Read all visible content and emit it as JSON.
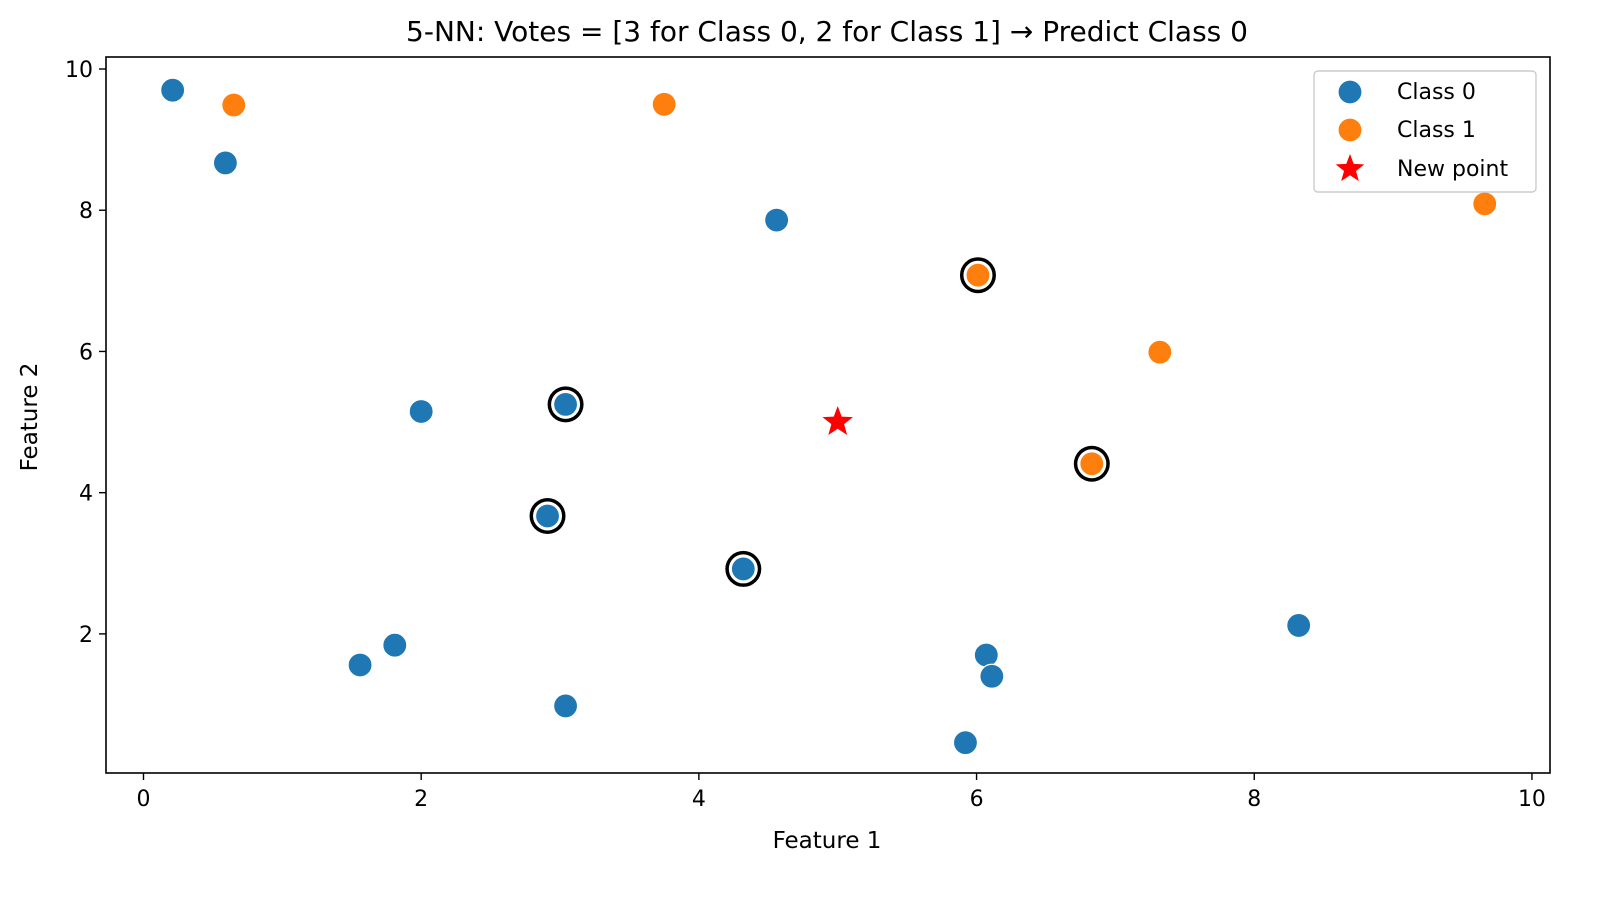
{
  "chart_data": {
    "type": "scatter",
    "title": "5-NN: Votes = [3 for Class 0, 2 for Class 1] → Predict Class 0",
    "xlabel": "Feature 1",
    "ylabel": "Feature 2",
    "xlim": [
      -0.27,
      10.13
    ],
    "ylim": [
      0.03,
      10.17
    ],
    "xticks": [
      0,
      2,
      4,
      6,
      8,
      10
    ],
    "yticks": [
      2,
      4,
      6,
      8,
      10
    ],
    "grid": false,
    "legend_position": "top-right",
    "series": [
      {
        "name": "Class 0",
        "color": "#1f77b4",
        "points": [
          {
            "x": 0.21,
            "y": 9.7
          },
          {
            "x": 0.59,
            "y": 8.67
          },
          {
            "x": 4.56,
            "y": 7.86
          },
          {
            "x": 2.0,
            "y": 5.15
          },
          {
            "x": 3.04,
            "y": 5.25
          },
          {
            "x": 2.91,
            "y": 3.67
          },
          {
            "x": 4.32,
            "y": 2.92
          },
          {
            "x": 1.81,
            "y": 1.84
          },
          {
            "x": 1.56,
            "y": 1.56
          },
          {
            "x": 3.04,
            "y": 0.98
          },
          {
            "x": 6.07,
            "y": 1.7
          },
          {
            "x": 6.11,
            "y": 1.4
          },
          {
            "x": 5.92,
            "y": 0.46
          },
          {
            "x": 8.32,
            "y": 2.12
          }
        ]
      },
      {
        "name": "Class 1",
        "color": "#ff7f0e",
        "points": [
          {
            "x": 0.65,
            "y": 9.49
          },
          {
            "x": 3.75,
            "y": 9.5
          },
          {
            "x": 6.01,
            "y": 7.08
          },
          {
            "x": 7.32,
            "y": 5.99
          },
          {
            "x": 6.83,
            "y": 4.41
          },
          {
            "x": 9.66,
            "y": 8.09
          }
        ]
      }
    ],
    "new_point": {
      "name": "New point",
      "x": 5.0,
      "y": 5.0,
      "color": "#ff0000",
      "marker": "star"
    },
    "neighbors": [
      {
        "x": 3.04,
        "y": 5.25
      },
      {
        "x": 2.91,
        "y": 3.67
      },
      {
        "x": 4.32,
        "y": 2.92
      },
      {
        "x": 6.01,
        "y": 7.08
      },
      {
        "x": 6.83,
        "y": 4.41
      }
    ],
    "legend": [
      "Class 0",
      "Class 1",
      "New point"
    ]
  }
}
